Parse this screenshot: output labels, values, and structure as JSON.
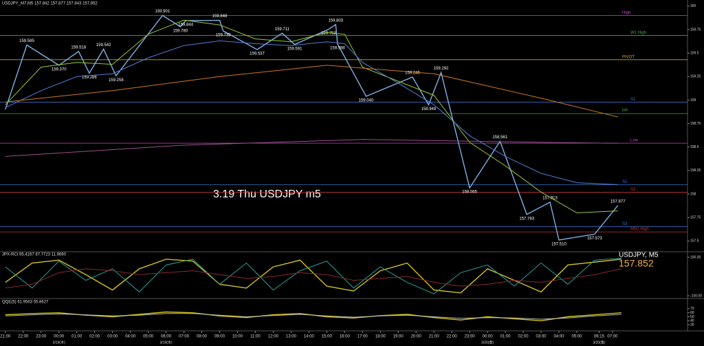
{
  "header": "USDJPY_M7,M5 157.842 157.877 157.843 157.852",
  "chart_data": [
    {
      "type": "line",
      "title": "3.19 Thu USDJPY m5",
      "xlim": [
        -0.3,
        38.2
      ],
      "ylim": [
        157.4,
        160.05
      ],
      "yticks": [
        157.5,
        157.75,
        158,
        158.25,
        158.5,
        158.75,
        159,
        159.25,
        159.5,
        159.75,
        160
      ],
      "xticks": [
        {
          "value": 0,
          "label": "21:00"
        },
        {
          "value": 1,
          "label": "22:00"
        },
        {
          "value": 2,
          "label": "23:00"
        },
        {
          "value": 3,
          "label": "00:00"
        },
        {
          "value": 4,
          "label": "01:00"
        },
        {
          "value": 5,
          "label": "02:00"
        },
        {
          "value": 6,
          "label": "03:00"
        },
        {
          "value": 7,
          "label": "04:00"
        },
        {
          "value": 8,
          "label": "05:00"
        },
        {
          "value": 9,
          "label": "06:00"
        },
        {
          "value": 10,
          "label": "07:00"
        },
        {
          "value": 11,
          "label": "08:00"
        },
        {
          "value": 12,
          "label": "09:00"
        },
        {
          "value": 13,
          "label": "10:00"
        },
        {
          "value": 14,
          "label": "11:00"
        },
        {
          "value": 15,
          "label": "12:00"
        },
        {
          "value": 16,
          "label": "13:00"
        },
        {
          "value": 17,
          "label": "14:00"
        },
        {
          "value": 18,
          "label": "15:00"
        },
        {
          "value": 19,
          "label": "16:00"
        },
        {
          "value": 20,
          "label": "17:00"
        },
        {
          "value": 21,
          "label": "18:00"
        },
        {
          "value": 22,
          "label": "19:00"
        },
        {
          "value": 23,
          "label": "20:00"
        },
        {
          "value": 24,
          "label": "21:00"
        },
        {
          "value": 25,
          "label": "22:00"
        },
        {
          "value": 26,
          "label": "23:00"
        },
        {
          "value": 27,
          "label": "00:00"
        },
        {
          "value": 28,
          "label": "01:00"
        },
        {
          "value": 29,
          "label": "02:00"
        },
        {
          "value": 30,
          "label": "03:00"
        },
        {
          "value": 31,
          "label": "04:00"
        },
        {
          "value": 32,
          "label": "05:00"
        },
        {
          "value": 33.25,
          "label": "06:15"
        },
        {
          "value": 34,
          "label": "07:00"
        }
      ],
      "date_labels": [
        {
          "value": 3,
          "label": "3/19(木)"
        },
        {
          "value": 9,
          "label": "3/19(木)"
        },
        {
          "value": 27,
          "label": "3/20(金)"
        },
        {
          "value": 33.25,
          "label": "3/20(金)"
        }
      ],
      "series": [
        {
          "color": "#7fb2e5",
          "x": [
            0,
            1.2,
            3.0,
            4.1,
            4.7,
            5.5,
            6.2,
            8.8,
            9.8,
            10.1,
            12.0,
            12.2,
            14.1,
            15.5,
            16.2,
            18.1,
            18.5,
            18.6,
            20.2,
            22.8,
            23.7,
            24.4,
            26.0,
            27.7,
            29.2,
            30.5,
            31.0,
            33.0,
            34.3
          ],
          "values": [
            158.9,
            159.585,
            159.37,
            159.518,
            159.286,
            159.542,
            159.258,
            159.901,
            159.78,
            159.844,
            159.848,
            159.735,
            159.537,
            159.711,
            159.591,
            159.753,
            159.803,
            159.598,
            159.04,
            159.245,
            158.949,
            159.292,
            158.065,
            158.561,
            157.783,
            157.913,
            157.51,
            157.573,
            157.877
          ],
          "value_labels": [
            null,
            "159.585",
            "159.370",
            "159.518",
            "159.286",
            "159.542",
            "159.258",
            "159.901",
            "159.780",
            "159.844",
            "159.848",
            "159.735",
            "159.537",
            "159.711",
            "159.591",
            "159.753",
            "159.803",
            "159.598",
            "159.040",
            "159.245",
            "158.949",
            "159.292",
            "158.065",
            "158.561",
            "157.783",
            "157.913",
            "157.510",
            "157.573",
            "157.877"
          ]
        },
        {
          "color": "#9acd32",
          "x": [
            0,
            2,
            4,
            6,
            8,
            10,
            12,
            14,
            16,
            18,
            19,
            20,
            22,
            24,
            26,
            28,
            30,
            32,
            34.3
          ],
          "values": [
            158.95,
            159.35,
            159.4,
            159.38,
            159.7,
            159.85,
            159.8,
            159.65,
            159.62,
            159.72,
            159.7,
            159.35,
            159.2,
            159.05,
            158.55,
            158.3,
            158.02,
            157.8,
            157.82
          ]
        },
        {
          "color": "#4f7fd6",
          "x": [
            0,
            2,
            4,
            6,
            8,
            10,
            12,
            14,
            16,
            18,
            19,
            20,
            22,
            24,
            26,
            28,
            30,
            32,
            34.3
          ],
          "values": [
            158.92,
            159.1,
            159.25,
            159.28,
            159.45,
            159.58,
            159.63,
            159.6,
            159.58,
            159.62,
            159.6,
            159.4,
            159.18,
            158.95,
            158.62,
            158.4,
            158.22,
            158.12,
            158.1
          ]
        },
        {
          "color": "#cc7a1f",
          "x": [
            0,
            6,
            12,
            18,
            24,
            30,
            34.3
          ],
          "values": [
            158.98,
            159.1,
            159.25,
            159.37,
            159.28,
            159.02,
            158.82
          ]
        },
        {
          "color": "#9b4f8f",
          "x": [
            0,
            10,
            20,
            30,
            34.3
          ],
          "values": [
            158.4,
            158.52,
            158.58,
            158.55,
            158.54
          ]
        }
      ],
      "levels": [
        {
          "label": "High",
          "value": 159.901,
          "color": "#cc44cc"
        },
        {
          "label": "W1 High",
          "value": 159.687,
          "color": "#44aa44"
        },
        {
          "label": "PIVOT",
          "value": 159.429,
          "color": "#ccaa22"
        },
        {
          "label": "S1",
          "value": 158.978,
          "color": "#3a6fc9"
        },
        {
          "label": "PP",
          "value": 158.856,
          "color": "#44aa44"
        },
        {
          "label": "Low",
          "value": 158.541,
          "color": "#cc44cc"
        },
        {
          "label": "S2",
          "value": 158.098,
          "color": "#3a6fc9"
        },
        {
          "label": "S1",
          "value": 158.019,
          "color": "#cc3333"
        },
        {
          "label": "S3",
          "value": 157.654,
          "color": "#3a6fc9"
        },
        {
          "label": "MN1 High",
          "value": 157.597,
          "color": "#cc3333"
        }
      ]
    },
    {
      "type": "line",
      "title": "JPX-RCI 95.4167 87.7723 11.9690",
      "symbol": "USDJPY, M5",
      "last_price": "157.852",
      "ylim": [
        -100,
        100
      ],
      "yticks": [
        {
          "value": -100,
          "label": "-100.00"
        },
        {
          "value": 100,
          "label": "100.00"
        }
      ],
      "series": [
        {
          "color": "#d4c21a",
          "x": [
            0,
            1.5,
            3,
            4.5,
            6,
            7.5,
            9,
            10.5,
            12,
            13.5,
            15,
            16.5,
            18,
            19.5,
            21,
            22.5,
            24,
            25.5,
            27,
            28.5,
            30,
            31.5,
            33,
            34.5
          ],
          "values": [
            -30,
            70,
            85,
            10,
            -70,
            40,
            90,
            80,
            -40,
            -60,
            50,
            85,
            -50,
            -75,
            30,
            70,
            -70,
            -85,
            40,
            -20,
            -80,
            60,
            75,
            90
          ]
        },
        {
          "color": "#2aa39a",
          "x": [
            0,
            1.5,
            3,
            4.5,
            6,
            7.5,
            9,
            10.5,
            12,
            13.5,
            15,
            16.5,
            18,
            19.5,
            21,
            22.5,
            24,
            25.5,
            27,
            28.5,
            30,
            31.5,
            33,
            34.5
          ],
          "values": [
            50,
            -60,
            80,
            -20,
            40,
            -80,
            60,
            90,
            -40,
            70,
            -70,
            30,
            80,
            -60,
            50,
            -30,
            -90,
            20,
            60,
            -50,
            70,
            -40,
            85,
            95
          ]
        },
        {
          "color": "#8b2a2a",
          "x": [
            0,
            1.5,
            3,
            4.5,
            6,
            7.5,
            9,
            10.5,
            12,
            13.5,
            15,
            16.5,
            18,
            19.5,
            21,
            22.5,
            24,
            25.5,
            27,
            28.5,
            30,
            31.5,
            33,
            34.5
          ],
          "values": [
            -60,
            -40,
            20,
            40,
            30,
            10,
            20,
            30,
            10,
            -10,
            0,
            20,
            10,
            -20,
            -10,
            0,
            -30,
            -50,
            -40,
            -20,
            -30,
            -10,
            10,
            40
          ]
        }
      ]
    },
    {
      "type": "line",
      "title": "QQE(5) 61.9563 55.8627",
      "ylim": [
        20,
        80
      ],
      "yticks": [
        30,
        40,
        50,
        60,
        70
      ],
      "series": [
        {
          "color": "#d4c21a",
          "x": [
            0,
            1.5,
            3,
            4.5,
            6,
            7.5,
            9,
            10.5,
            12,
            13.5,
            15,
            16.5,
            18,
            19.5,
            21,
            22.5,
            24,
            25.5,
            27,
            28.5,
            30,
            31.5,
            33,
            34.5
          ],
          "values": [
            55,
            58,
            60,
            54,
            50,
            56,
            62,
            60,
            52,
            48,
            55,
            58,
            50,
            47,
            53,
            56,
            48,
            42,
            50,
            45,
            40,
            50,
            55,
            60
          ]
        },
        {
          "color": "#bbbbaa",
          "x": [
            0,
            1.5,
            3,
            4.5,
            6,
            7.5,
            9,
            10.5,
            12,
            13.5,
            15,
            16.5,
            18,
            19.5,
            21,
            22.5,
            24,
            25.5,
            27,
            28.5,
            30,
            31.5,
            33,
            34.5
          ],
          "values": [
            52,
            55,
            57,
            55,
            52,
            54,
            58,
            58,
            54,
            50,
            53,
            56,
            52,
            49,
            52,
            54,
            50,
            46,
            48,
            47,
            44,
            47,
            52,
            56
          ]
        }
      ]
    }
  ]
}
